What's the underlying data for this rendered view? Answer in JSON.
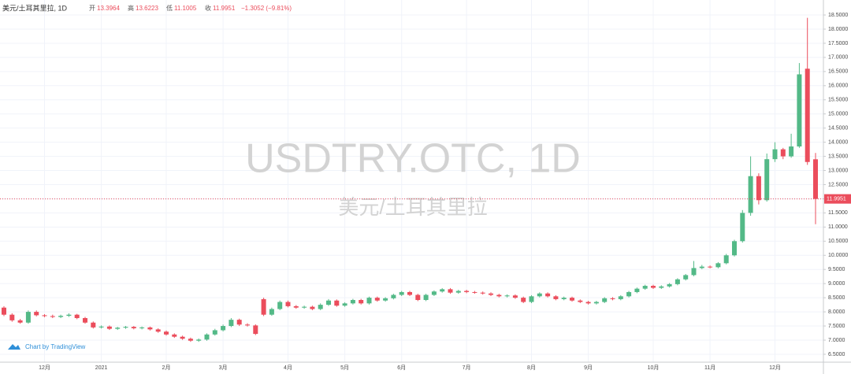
{
  "chart_data": {
    "type": "candlestick",
    "symbol_title": "美元/土耳其里拉, 1D",
    "ohlc_labels": {
      "open": "开",
      "high": "高",
      "low": "低",
      "close": "收"
    },
    "change_label": "−1.3052 (−9.81%)",
    "watermark": "USDTRY.OTC, 1D",
    "watermark_subtitle": "美元/土耳其里拉",
    "attribution": "Chart by TradingView",
    "up_color": "#53b987",
    "down_color": "#eb4d5c",
    "grid": true,
    "categories": [
      null,
      null,
      null,
      null,
      null,
      "12月",
      null,
      null,
      null,
      null,
      null,
      null,
      "2021",
      null,
      null,
      null,
      null,
      null,
      null,
      null,
      "2月",
      null,
      null,
      null,
      null,
      null,
      null,
      "3月",
      null,
      null,
      null,
      null,
      null,
      null,
      null,
      "4月",
      null,
      null,
      null,
      null,
      null,
      null,
      "5月",
      null,
      null,
      null,
      null,
      null,
      null,
      "6月",
      null,
      null,
      null,
      null,
      null,
      null,
      null,
      "7月",
      null,
      null,
      null,
      null,
      null,
      null,
      null,
      "8月",
      null,
      null,
      null,
      null,
      null,
      null,
      "9月",
      null,
      null,
      null,
      null,
      null,
      null,
      null,
      "10月",
      null,
      null,
      null,
      null,
      null,
      null,
      "11月",
      null,
      null,
      null,
      null,
      null,
      null,
      null,
      "12月",
      null,
      null,
      null,
      null,
      null
    ],
    "open": [
      8.15,
      7.9,
      7.7,
      7.62,
      8.0,
      7.88,
      7.85,
      7.82,
      7.86,
      7.9,
      7.78,
      7.62,
      7.45,
      7.48,
      7.4,
      7.44,
      7.47,
      7.42,
      7.45,
      7.38,
      7.3,
      7.2,
      7.12,
      7.05,
      6.98,
      7.02,
      7.2,
      7.35,
      7.5,
      7.72,
      7.55,
      7.52,
      8.45,
      7.9,
      8.1,
      8.35,
      8.2,
      8.15,
      8.18,
      8.1,
      8.25,
      8.4,
      8.22,
      8.3,
      8.42,
      8.3,
      8.5,
      8.4,
      8.48,
      8.6,
      8.7,
      8.6,
      8.42,
      8.6,
      8.72,
      8.8,
      8.68,
      8.74,
      8.7,
      8.68,
      8.65,
      8.6,
      8.55,
      8.58,
      8.5,
      8.35,
      8.55,
      8.65,
      8.55,
      8.45,
      8.5,
      8.4,
      8.35,
      8.3,
      8.35,
      8.48,
      8.45,
      8.55,
      8.7,
      8.82,
      8.92,
      8.85,
      8.9,
      8.98,
      9.15,
      9.3,
      9.55,
      9.6,
      9.58,
      9.72,
      10.0,
      10.5,
      11.5,
      12.8,
      11.95,
      13.4,
      13.75,
      13.5,
      13.85,
      16.6,
      13.3964
    ],
    "high": [
      8.2,
      7.95,
      7.75,
      8.05,
      8.05,
      7.92,
      7.9,
      7.9,
      7.95,
      7.93,
      7.82,
      7.66,
      7.52,
      7.52,
      7.47,
      7.5,
      7.5,
      7.48,
      7.48,
      7.42,
      7.34,
      7.24,
      7.16,
      7.09,
      7.06,
      7.24,
      7.4,
      7.55,
      7.78,
      7.76,
      7.6,
      7.56,
      8.5,
      8.15,
      8.4,
      8.4,
      8.24,
      8.22,
      8.22,
      8.3,
      8.45,
      8.44,
      8.34,
      8.46,
      8.46,
      8.54,
      8.54,
      8.52,
      8.64,
      8.74,
      8.74,
      8.64,
      8.64,
      8.76,
      8.84,
      8.84,
      8.78,
      8.78,
      8.74,
      8.72,
      8.69,
      8.64,
      8.62,
      8.62,
      8.54,
      8.59,
      8.69,
      8.69,
      8.59,
      8.54,
      8.54,
      8.44,
      8.39,
      8.39,
      8.52,
      8.52,
      8.59,
      8.74,
      8.86,
      8.96,
      8.96,
      8.94,
      9.02,
      9.19,
      9.34,
      9.8,
      9.66,
      9.64,
      9.76,
      10.05,
      10.55,
      11.6,
      13.5,
      12.9,
      13.6,
      14.0,
      13.8,
      14.3,
      16.8,
      18.4,
      13.6223
    ],
    "low": [
      7.85,
      7.65,
      7.58,
      7.58,
      7.84,
      7.81,
      7.78,
      7.78,
      7.82,
      7.74,
      7.58,
      7.41,
      7.41,
      7.36,
      7.36,
      7.4,
      7.38,
      7.38,
      7.34,
      7.26,
      7.16,
      7.08,
      7.01,
      6.94,
      6.94,
      6.98,
      7.16,
      7.31,
      7.46,
      7.5,
      7.48,
      7.18,
      7.85,
      7.86,
      8.06,
      8.16,
      8.11,
      8.11,
      8.06,
      8.06,
      8.21,
      8.18,
      8.18,
      8.26,
      8.26,
      8.26,
      8.36,
      8.36,
      8.44,
      8.56,
      8.56,
      8.38,
      8.38,
      8.56,
      8.68,
      8.64,
      8.64,
      8.66,
      8.64,
      8.61,
      8.56,
      8.51,
      8.51,
      8.46,
      8.31,
      8.31,
      8.51,
      8.51,
      8.41,
      8.41,
      8.36,
      8.31,
      8.26,
      8.26,
      8.31,
      8.41,
      8.41,
      8.51,
      8.66,
      8.78,
      8.81,
      8.81,
      8.86,
      8.94,
      9.11,
      9.26,
      9.51,
      9.54,
      9.54,
      9.68,
      9.96,
      10.45,
      11.4,
      11.8,
      11.9,
      13.3,
      13.4,
      13.45,
      13.8,
      13.2,
      11.1005
    ],
    "close": [
      7.9,
      7.7,
      7.62,
      8.0,
      7.88,
      7.85,
      7.82,
      7.86,
      7.9,
      7.78,
      7.62,
      7.45,
      7.48,
      7.4,
      7.44,
      7.47,
      7.42,
      7.45,
      7.38,
      7.3,
      7.2,
      7.12,
      7.05,
      6.98,
      7.02,
      7.2,
      7.35,
      7.5,
      7.72,
      7.55,
      7.52,
      7.22,
      7.9,
      8.1,
      8.35,
      8.2,
      8.15,
      8.18,
      8.1,
      8.25,
      8.4,
      8.22,
      8.3,
      8.42,
      8.3,
      8.5,
      8.4,
      8.48,
      8.6,
      8.7,
      8.6,
      8.42,
      8.6,
      8.72,
      8.8,
      8.68,
      8.74,
      8.7,
      8.68,
      8.65,
      8.6,
      8.55,
      8.58,
      8.5,
      8.35,
      8.55,
      8.65,
      8.55,
      8.45,
      8.5,
      8.4,
      8.35,
      8.3,
      8.35,
      8.48,
      8.45,
      8.55,
      8.7,
      8.82,
      8.92,
      8.85,
      8.9,
      8.98,
      9.15,
      9.3,
      9.55,
      9.6,
      9.58,
      9.72,
      10.0,
      10.5,
      11.5,
      12.8,
      11.95,
      13.4,
      13.75,
      13.5,
      13.85,
      16.4,
      13.3003,
      11.9951
    ],
    "ylim": [
      6.22,
      19.03
    ],
    "yticks": [
      {
        "value": 6.5,
        "label": "6.5000"
      },
      {
        "value": 7,
        "label": "7.0000"
      },
      {
        "value": 7.5,
        "label": "7.5000"
      },
      {
        "value": 8,
        "label": "8.0000"
      },
      {
        "value": 8.5,
        "label": "8.5000"
      },
      {
        "value": 9,
        "label": "9.0000"
      },
      {
        "value": 9.5,
        "label": "9.5000"
      },
      {
        "value": 10,
        "label": "10.0000"
      },
      {
        "value": 10.5,
        "label": "10.5000"
      },
      {
        "value": 11,
        "label": "11.0000"
      },
      {
        "value": 11.5,
        "label": "11.5000"
      },
      {
        "value": 12,
        "label": "12.0000"
      },
      {
        "value": 12.5,
        "label": "12.5000"
      },
      {
        "value": 13,
        "label": "13.0000"
      },
      {
        "value": 13.5,
        "label": "13.5000"
      },
      {
        "value": 14,
        "label": "14.0000"
      },
      {
        "value": 14.5,
        "label": "14.5000"
      },
      {
        "value": 15,
        "label": "15.0000"
      },
      {
        "value": 15.5,
        "label": "15.5000"
      },
      {
        "value": 16,
        "label": "16.0000"
      },
      {
        "value": 16.5,
        "label": "16.5000"
      },
      {
        "value": 17,
        "label": "17.0000"
      },
      {
        "value": 17.5,
        "label": "17.5000"
      },
      {
        "value": 18,
        "label": "18.0000"
      },
      {
        "value": 18.5,
        "label": "18.5000"
      }
    ]
  }
}
